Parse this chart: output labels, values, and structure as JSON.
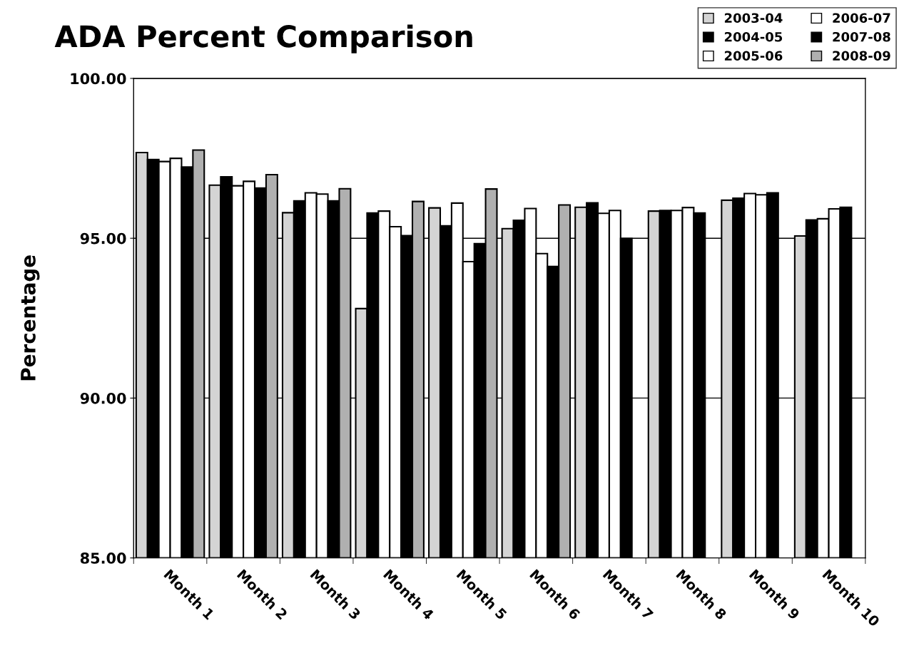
{
  "chart_data": {
    "type": "bar",
    "title": "ADA Percent Comparison",
    "ylabel": "Percentage",
    "categories": [
      "Month 1",
      "Month 2",
      "Month 3",
      "Month 4",
      "Month 5",
      "Month 6",
      "Month 7",
      "Month 8",
      "Month 9",
      "Month 10"
    ],
    "series": [
      {
        "name": "2003-04",
        "color": "#d4d4d4",
        "values": [
          97.68,
          96.66,
          95.8,
          92.8,
          95.95,
          95.3,
          95.97,
          95.85,
          96.19,
          95.07
        ]
      },
      {
        "name": "2004-05",
        "color": "#000000",
        "values": [
          97.46,
          96.92,
          96.17,
          95.79,
          95.39,
          95.56,
          96.11,
          95.87,
          96.25,
          95.57
        ]
      },
      {
        "name": "2005-06",
        "color": "#ffffff",
        "values": [
          97.4,
          96.64,
          96.42,
          95.85,
          96.1,
          95.93,
          95.78,
          95.87,
          96.4,
          95.61
        ]
      },
      {
        "name": "2006-07",
        "color": "#ffffff",
        "values": [
          97.5,
          96.78,
          96.38,
          95.36,
          94.27,
          94.52,
          95.87,
          95.96,
          96.36,
          95.92
        ]
      },
      {
        "name": "2007-08",
        "color": "#000000",
        "values": [
          97.23,
          96.57,
          96.17,
          95.08,
          94.83,
          94.12,
          94.99,
          95.79,
          96.42,
          95.97
        ]
      },
      {
        "name": "2008-09",
        "color": "#b0b0b0",
        "values": [
          97.76,
          96.99,
          96.55,
          96.15,
          96.54,
          96.04,
          null,
          null,
          null,
          null
        ]
      }
    ],
    "ylim": [
      85,
      100
    ],
    "yticks": [
      {
        "value": 85,
        "label": "85.00"
      },
      {
        "value": 90,
        "label": "90.00"
      },
      {
        "value": 95,
        "label": "95.00"
      },
      {
        "value": 100,
        "label": "100.00"
      }
    ],
    "grid": "y",
    "legend": "top right"
  }
}
